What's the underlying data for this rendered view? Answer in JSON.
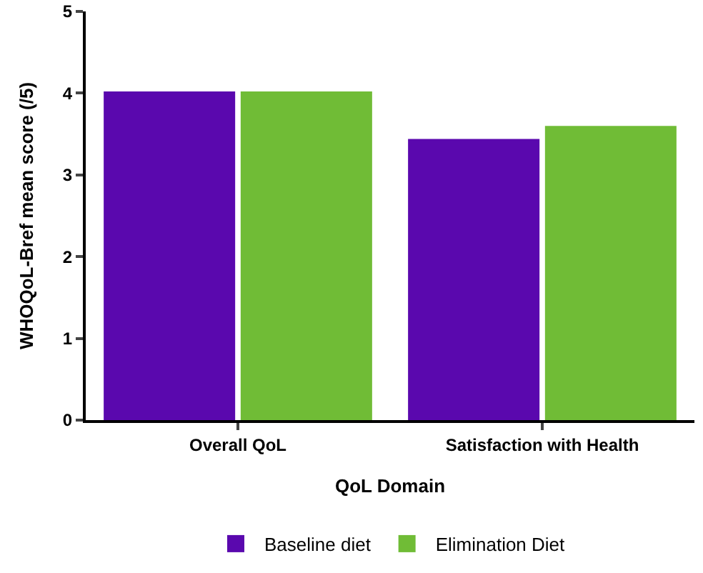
{
  "chart_data": {
    "type": "bar",
    "xlabel": "QoL Domain",
    "ylabel": "WHOQoL-Bref mean score (/5)",
    "categories": [
      "Overall QoL",
      "Satisfaction with Health"
    ],
    "series": [
      {
        "name": "Baseline diet",
        "color": "#5a08ae",
        "values": [
          4.02,
          3.44
        ]
      },
      {
        "name": "Elimination Diet",
        "color": "#70bc36",
        "values": [
          4.02,
          3.6
        ]
      }
    ],
    "ylim": [
      0,
      5
    ],
    "yticks": [
      0,
      1,
      2,
      3,
      4,
      5
    ],
    "grid": false,
    "legend": "bottom"
  }
}
